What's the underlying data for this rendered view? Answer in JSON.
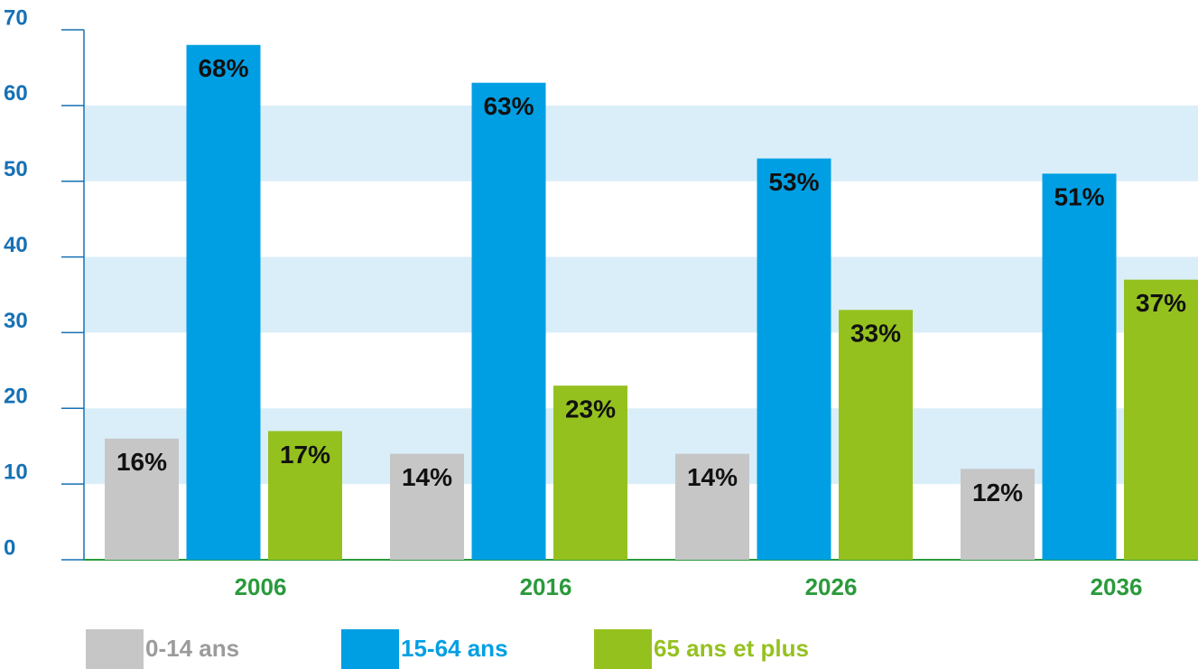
{
  "chart_data": {
    "type": "bar",
    "categories": [
      "2006",
      "2016",
      "2026",
      "2036"
    ],
    "series": [
      {
        "name": "0-14 ans",
        "color": "#c6c6c6",
        "values": [
          16,
          14,
          14,
          12
        ],
        "value_labels": [
          "16%",
          "14%",
          "14%",
          "12%"
        ]
      },
      {
        "name": "15-64 ans",
        "color": "#009fe3",
        "values": [
          68,
          63,
          53,
          51
        ],
        "value_labels": [
          "68%",
          "63%",
          "53%",
          "51%"
        ]
      },
      {
        "name": "65 ans et plus",
        "color": "#95c11f",
        "values": [
          17,
          23,
          33,
          37
        ],
        "value_labels": [
          "17%",
          "23%",
          "33%",
          "37%"
        ]
      }
    ],
    "ylim": [
      0,
      70
    ],
    "yticks": [
      0,
      10,
      20,
      30,
      40,
      50,
      60,
      70
    ],
    "grid": "bands"
  }
}
